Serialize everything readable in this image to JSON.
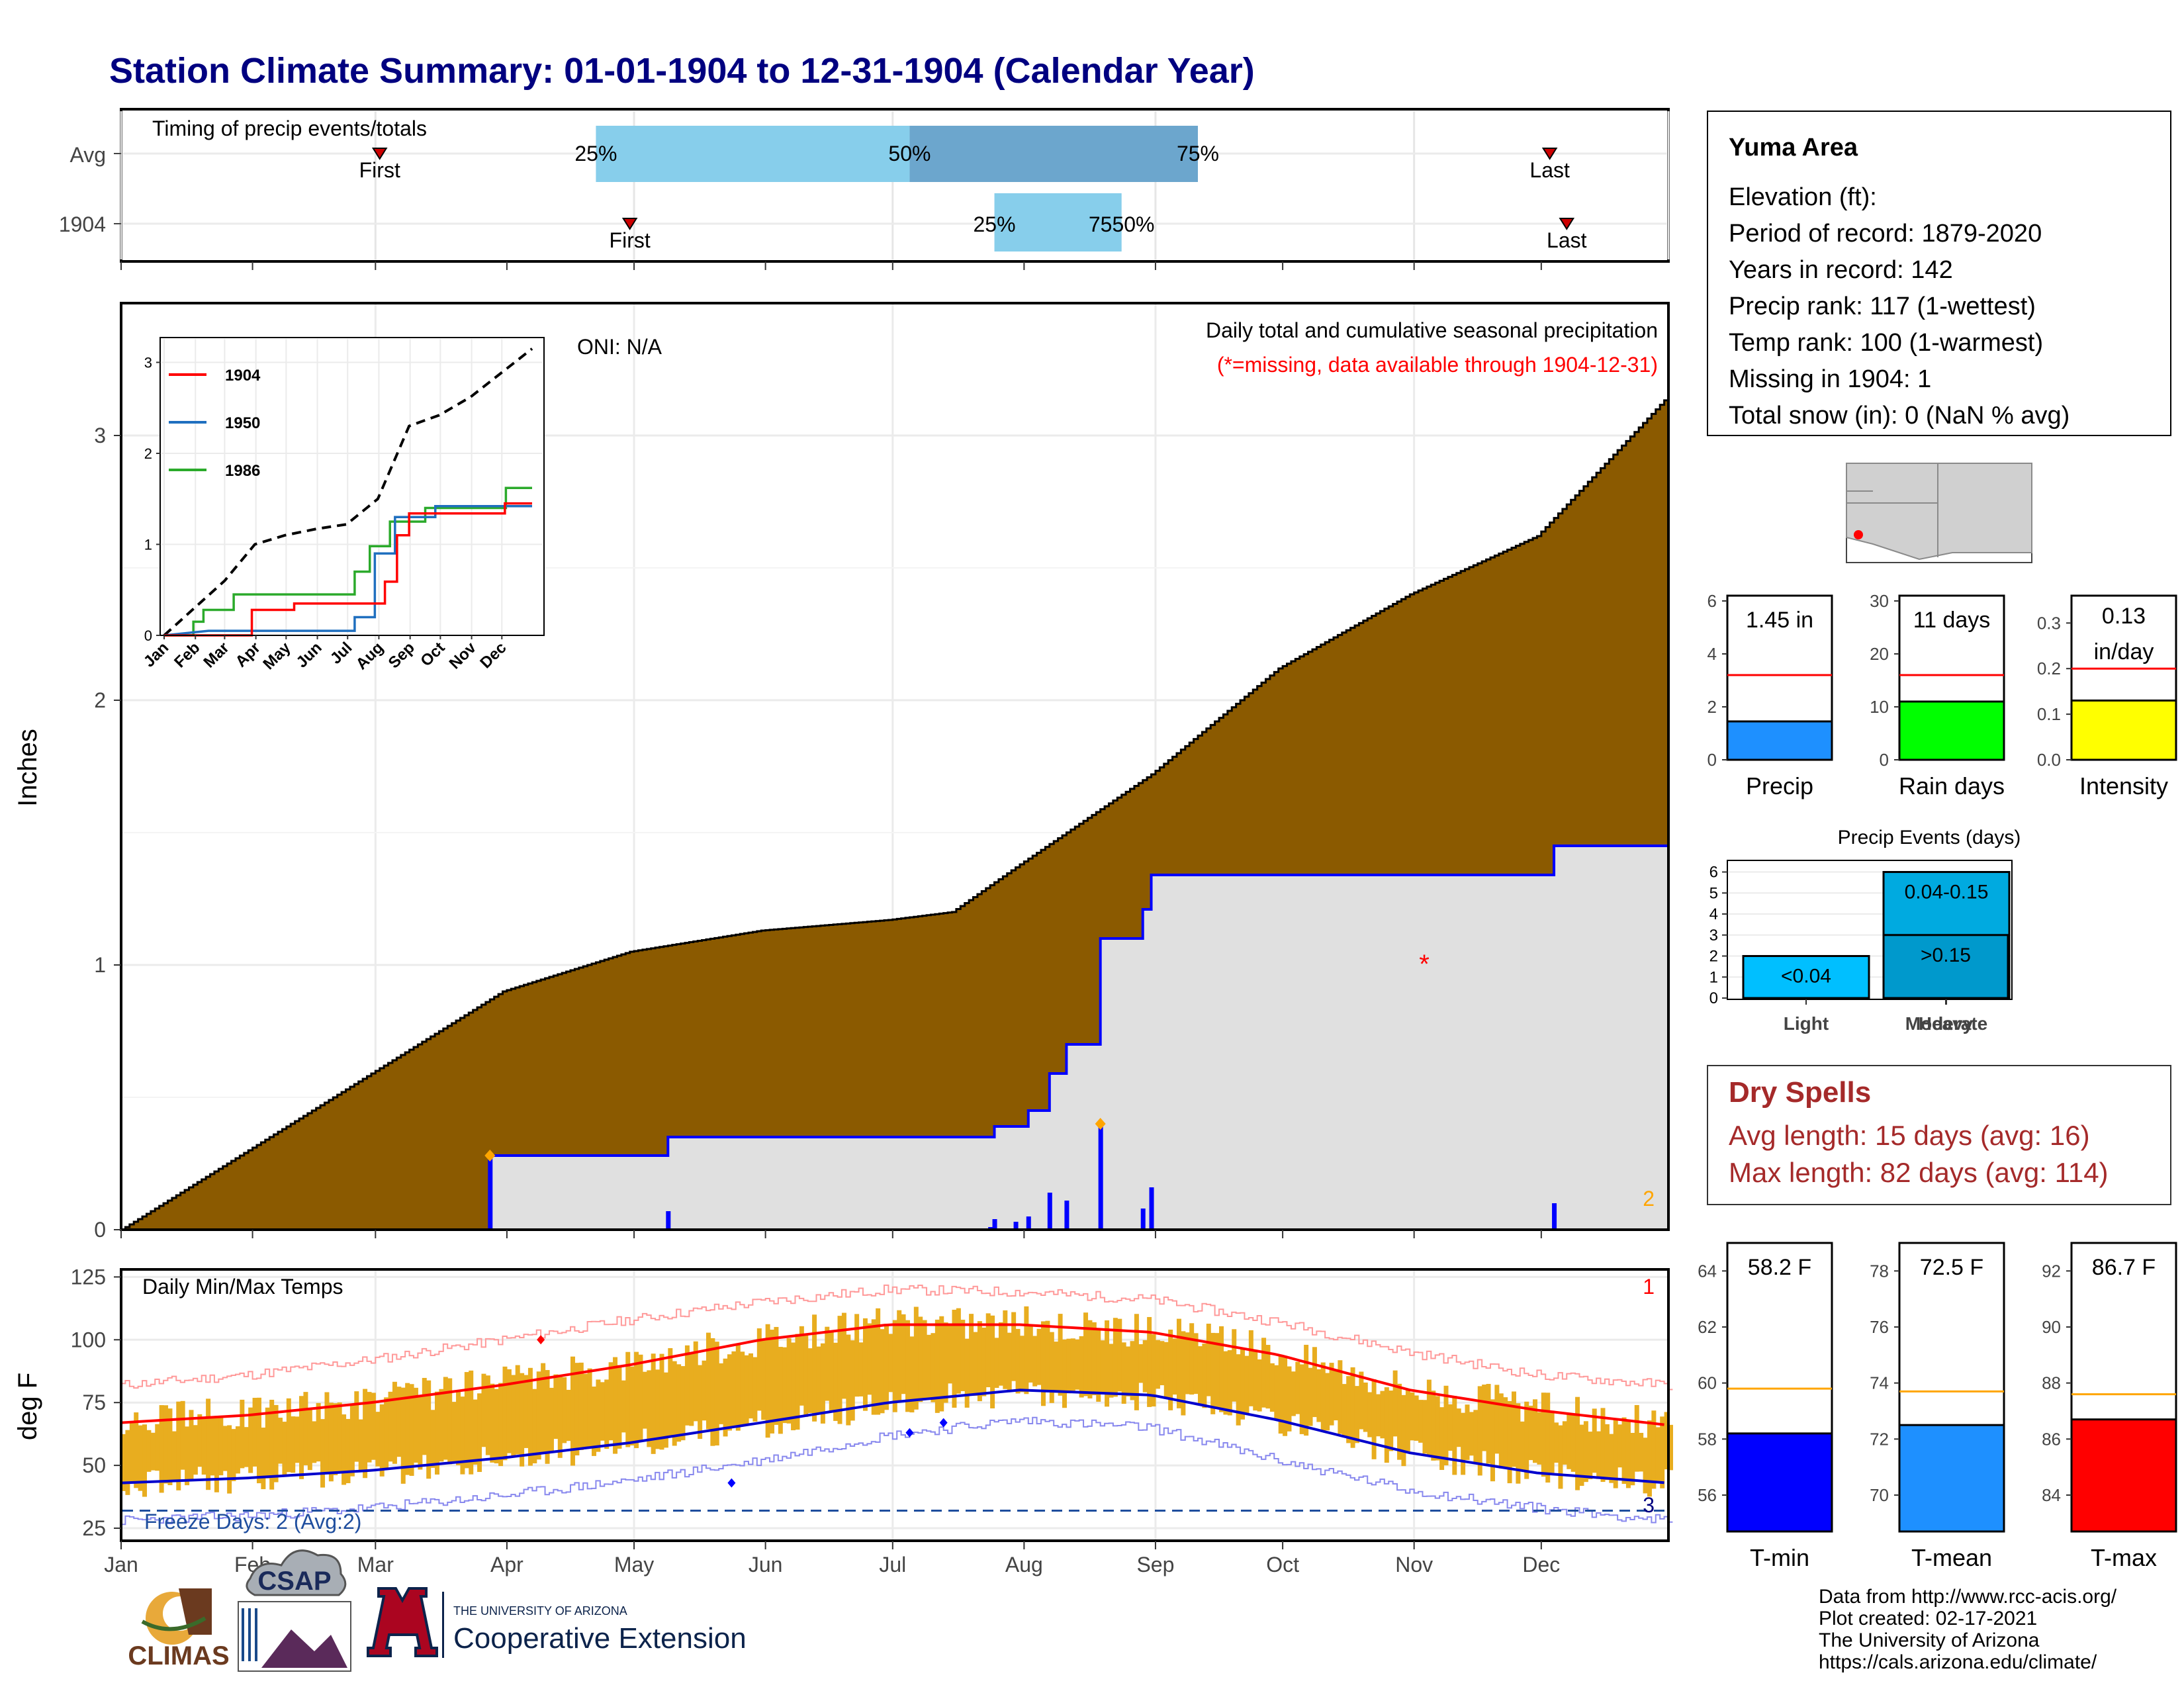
{
  "page": {
    "title": "Station Climate Summary: 01-01-1904 to 12-31-1904 (Calendar Year)",
    "months": [
      "Jan",
      "Feb",
      "Mar",
      "Apr",
      "May",
      "Jun",
      "Jul",
      "Aug",
      "Sep",
      "Oct",
      "Nov",
      "Dec"
    ],
    "colors": {
      "title": "#000080",
      "cumulative_fill": "#8B5A00",
      "avg_fill": "#E0E0E0",
      "series_blue": "#0000FF",
      "tmax_line": "#FF0000",
      "tmin_line": "#0000CC",
      "temp_bar": "#E8AD1F",
      "record_max": "#FF9999",
      "record_min": "#8888EE"
    }
  },
  "station": {
    "name": "Yuma Area",
    "lines": [
      "Elevation (ft):",
      "Period of record: 1879-2020",
      "Years in record: 142",
      "Precip rank: 117 (1-wettest)",
      "Temp rank: 100 (1-warmest)",
      "Missing in 1904: 1",
      "Total snow (in): 0 (NaN % avg)"
    ]
  },
  "timing": {
    "title": "Timing of precip events/totals",
    "rows": [
      "Avg",
      "1904"
    ],
    "first_label": "First",
    "last_label": "Last",
    "pct_labels": [
      "25%",
      "50%",
      "75%"
    ],
    "overlap_label": "7550%",
    "avg": {
      "first_doy": 62,
      "p25_doy": 113,
      "p50_doy": 187,
      "p75_doy": 255,
      "last_doy": 338
    },
    "y1904": {
      "first_doy": 121,
      "p25_doy": 207,
      "p50_doy": 237,
      "p75_doy": 237,
      "last_doy": 342
    }
  },
  "precip_panel": {
    "ylabel": "Inches",
    "yticks": [
      "0",
      "1",
      "2",
      "3"
    ],
    "oni": "ONI: N/A",
    "caption": "Daily total and cumulative seasonal precipitation",
    "missing_note": "(*=missing, data available through 1904-12-31)",
    "missing_marker": "*",
    "corner_count": "2"
  },
  "inset": {
    "yticks": [
      "0",
      "1",
      "2",
      "3"
    ],
    "legend": [
      {
        "name": "1904",
        "color": "#FF0000"
      },
      {
        "name": "1950",
        "color": "#1F6FBF"
      },
      {
        "name": "1986",
        "color": "#2BAA2B"
      }
    ]
  },
  "temp_panel": {
    "title": "Daily Min/Max Temps",
    "ylabel": "deg F",
    "yticks": [
      "25",
      "50",
      "75",
      "100",
      "125"
    ],
    "freeze": "Freeze Days: 2 (Avg:2)",
    "count_top": "1",
    "count_bottom": "3"
  },
  "bars_precip": [
    {
      "name": "precip",
      "label": "Precip",
      "value_label": "1.45 in",
      "yticks": [
        "0",
        "2",
        "4",
        "6"
      ],
      "value": 1.45,
      "avg": 3.2,
      "ymax": 6.2,
      "color": "#1E90FF"
    },
    {
      "name": "raindays",
      "label": "Rain days",
      "value_label": "11 days",
      "yticks": [
        "0",
        "10",
        "20",
        "30"
      ],
      "value": 11,
      "avg": 16,
      "ymax": 31,
      "color": "#00FF00"
    },
    {
      "name": "intensity",
      "label": "Intensity",
      "value_label": "0.13 in/day",
      "value_lines": [
        "0.13",
        "in/day"
      ],
      "yticks": [
        "0.0",
        "0.1",
        "0.2",
        "0.3"
      ],
      "value": 0.13,
      "avg": 0.2,
      "ymax": 0.36,
      "color": "#FFFF00"
    }
  ],
  "events": {
    "title": "Precip Events (days)",
    "yticks": [
      "0",
      "1",
      "2",
      "3",
      "4",
      "5",
      "6"
    ],
    "categories": [
      "Light",
      "Moderate",
      "Heavy"
    ],
    "bins": [
      "<0.04",
      "0.04-0.15",
      ">0.15"
    ],
    "values": [
      2,
      6,
      3
    ],
    "colors": [
      "#00BFFF",
      "#00AAE0",
      "#0099CC"
    ]
  },
  "dry_spells": {
    "title": "Dry Spells",
    "avg": "Avg length: 15 days (avg: 16)",
    "max": "Max length: 82 days (avg: 114)"
  },
  "bars_temp": [
    {
      "name": "tmin",
      "label": "T-min",
      "value_label": "58.2 F",
      "yticks": [
        "56",
        "58",
        "60",
        "62",
        "64"
      ],
      "value": 58.2,
      "avg": 59.8,
      "ymin": 54.7,
      "ymax": 65,
      "color": "#0000FF"
    },
    {
      "name": "tmean",
      "label": "T-mean",
      "value_label": "72.5 F",
      "yticks": [
        "70",
        "72",
        "74",
        "76",
        "78"
      ],
      "value": 72.5,
      "avg": 73.7,
      "ymin": 68.7,
      "ymax": 79,
      "color": "#1E90FF"
    },
    {
      "name": "tmax",
      "label": "T-max",
      "value_label": "86.7 F",
      "yticks": [
        "84",
        "86",
        "88",
        "90",
        "92"
      ],
      "value": 86.7,
      "avg": 87.6,
      "ymin": 82.7,
      "ymax": 93,
      "color": "#FF0000"
    }
  ],
  "footer": {
    "source": [
      "Data from http://www.rcc-acis.org/",
      "Plot created: 02-17-2021",
      "The University of Arizona",
      "https://cals.arizona.edu/climate/"
    ],
    "climas": "CLIMAS",
    "csap": "CSAP",
    "ua_small": "THE UNIVERSITY OF ARIZONA",
    "ua_big": "Cooperative Extension"
  },
  "chart_data": [
    {
      "type": "area",
      "title": "Daily total and cumulative seasonal precipitation",
      "ylabel": "Inches",
      "ylim": [
        0,
        3.5
      ],
      "x": "day of year 1904",
      "series": [
        {
          "name": "cumulative average",
          "points": [
            [
              1,
              0
            ],
            [
              31,
              0.3
            ],
            [
              61,
              0.6
            ],
            [
              91,
              0.9
            ],
            [
              121,
              1.05
            ],
            [
              152,
              1.13
            ],
            [
              182,
              1.17
            ],
            [
              197,
              1.2
            ],
            [
              213,
              1.38
            ],
            [
              244,
              1.72
            ],
            [
              274,
              2.12
            ],
            [
              305,
              2.4
            ],
            [
              335,
              2.62
            ],
            [
              366,
              3.15
            ]
          ]
        },
        {
          "name": "cumulative 1904",
          "points": [
            [
              1,
              0
            ],
            [
              88,
              0
            ],
            [
              88,
              0.28
            ],
            [
              130,
              0.28
            ],
            [
              130,
              0.35
            ],
            [
              207,
              0.35
            ],
            [
              207,
              0.39
            ],
            [
              215,
              0.39
            ],
            [
              215,
              0.45
            ],
            [
              220,
              0.45
            ],
            [
              220,
              0.59
            ],
            [
              224,
              0.59
            ],
            [
              224,
              0.7
            ],
            [
              232,
              0.7
            ],
            [
              232,
              1.1
            ],
            [
              242,
              1.1
            ],
            [
              242,
              1.21
            ],
            [
              244,
              1.21
            ],
            [
              244,
              1.34
            ],
            [
              339,
              1.34
            ],
            [
              339,
              1.45
            ],
            [
              366,
              1.45
            ]
          ]
        },
        {
          "name": "daily 1904",
          "points": [
            [
              88,
              0.28
            ],
            [
              130,
              0.07
            ],
            [
              206,
              0.01
            ],
            [
              207,
              0.04
            ],
            [
              212,
              0.03
            ],
            [
              215,
              0.05
            ],
            [
              220,
              0.14
            ],
            [
              224,
              0.11
            ],
            [
              232,
              0.4
            ],
            [
              242,
              0.08
            ],
            [
              244,
              0.16
            ],
            [
              339,
              0.1
            ]
          ]
        }
      ]
    },
    {
      "type": "line",
      "title": "Daily Min/Max Temps",
      "ylabel": "deg F",
      "ylim": [
        20,
        128
      ],
      "series": [
        {
          "name": "avg max",
          "points": [
            [
              1,
              67
            ],
            [
              31,
              70
            ],
            [
              60,
              75
            ],
            [
              91,
              82
            ],
            [
              121,
              90
            ],
            [
              152,
              100
            ],
            [
              182,
              106
            ],
            [
              213,
              106
            ],
            [
              244,
              103
            ],
            [
              274,
              94
            ],
            [
              305,
              80
            ],
            [
              335,
              72
            ],
            [
              366,
              66
            ]
          ]
        },
        {
          "name": "avg min",
          "points": [
            [
              1,
              43
            ],
            [
              31,
              45
            ],
            [
              60,
              48
            ],
            [
              91,
              53
            ],
            [
              121,
              59
            ],
            [
              152,
              67
            ],
            [
              182,
              75
            ],
            [
              213,
              80
            ],
            [
              244,
              78
            ],
            [
              274,
              68
            ],
            [
              305,
              55
            ],
            [
              335,
              47
            ],
            [
              366,
              43
            ]
          ]
        },
        {
          "name": "record max",
          "points": [
            [
              1,
              82
            ],
            [
              31,
              86
            ],
            [
              60,
              92
            ],
            [
              91,
              100
            ],
            [
              121,
              108
            ],
            [
              152,
              115
            ],
            [
              182,
              120
            ],
            [
              213,
              119
            ],
            [
              244,
              116
            ],
            [
              274,
              107
            ],
            [
              305,
              95
            ],
            [
              335,
              86
            ],
            [
              366,
              82
            ]
          ]
        },
        {
          "name": "record min",
          "points": [
            [
              1,
              28
            ],
            [
              31,
              30
            ],
            [
              60,
              33
            ],
            [
              91,
              38
            ],
            [
              121,
              44
            ],
            [
              152,
              52
            ],
            [
              182,
              62
            ],
            [
              213,
              68
            ],
            [
              244,
              65
            ],
            [
              274,
              52
            ],
            [
              305,
              40
            ],
            [
              335,
              33
            ],
            [
              366,
              28
            ]
          ]
        }
      ]
    },
    {
      "type": "line",
      "title": "inset cumulative precipitation",
      "ylim": [
        0,
        3.2
      ],
      "series": [
        {
          "name": "average",
          "points": [
            [
              1,
              0
            ],
            [
              61,
              0.6
            ],
            [
              91,
              1.0
            ],
            [
              121,
              1.1
            ],
            [
              152,
              1.17
            ],
            [
              182,
              1.22
            ],
            [
              213,
              1.5
            ],
            [
              244,
              2.3
            ],
            [
              274,
              2.42
            ],
            [
              305,
              2.62
            ],
            [
              366,
              3.15
            ]
          ]
        },
        {
          "name": "1904",
          "points": [
            [
              1,
              0
            ],
            [
              88,
              0
            ],
            [
              88,
              0.28
            ],
            [
              130,
              0.28
            ],
            [
              130,
              0.35
            ],
            [
              220,
              0.35
            ],
            [
              220,
              0.59
            ],
            [
              232,
              0.59
            ],
            [
              232,
              1.1
            ],
            [
              244,
              1.1
            ],
            [
              244,
              1.34
            ],
            [
              339,
              1.34
            ],
            [
              339,
              1.45
            ],
            [
              366,
              1.45
            ]
          ]
        },
        {
          "name": "1950",
          "points": [
            [
              1,
              0
            ],
            [
              45,
              0.05
            ],
            [
              190,
              0.05
            ],
            [
              190,
              0.2
            ],
            [
              210,
              0.2
            ],
            [
              210,
              0.9
            ],
            [
              230,
              0.9
            ],
            [
              230,
              1.3
            ],
            [
              270,
              1.3
            ],
            [
              270,
              1.42
            ],
            [
              366,
              1.42
            ]
          ]
        },
        {
          "name": "1986",
          "points": [
            [
              1,
              0
            ],
            [
              30,
              0
            ],
            [
              30,
              0.15
            ],
            [
              40,
              0.15
            ],
            [
              40,
              0.28
            ],
            [
              70,
              0.28
            ],
            [
              70,
              0.45
            ],
            [
              190,
              0.45
            ],
            [
              190,
              0.7
            ],
            [
              205,
              0.7
            ],
            [
              205,
              0.98
            ],
            [
              225,
              0.98
            ],
            [
              225,
              1.25
            ],
            [
              260,
              1.25
            ],
            [
              260,
              1.4
            ],
            [
              340,
              1.4
            ],
            [
              340,
              1.62
            ],
            [
              366,
              1.62
            ]
          ]
        }
      ]
    }
  ]
}
